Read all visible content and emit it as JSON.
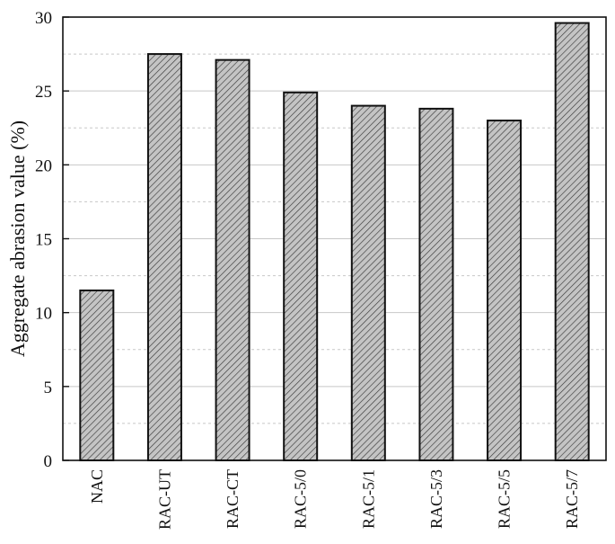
{
  "chart_data": {
    "type": "bar",
    "categories": [
      "NAC",
      "RAC-UT",
      "RAC-CT",
      "RAC-5/0",
      "RAC-5/1",
      "RAC-5/3",
      "RAC-5/5",
      "RAC-5/7"
    ],
    "values": [
      11.5,
      27.5,
      27.1,
      24.9,
      24.0,
      23.8,
      23.0,
      29.6
    ],
    "title": "",
    "xlabel": "",
    "ylabel": "Aggregate abrasion value (%)",
    "ylim": [
      0,
      30
    ],
    "yticks": [
      0,
      5,
      10,
      15,
      20,
      25,
      30
    ],
    "ytick_labels": [
      "0",
      "5",
      "10",
      "15",
      "20",
      "25",
      "30"
    ],
    "minor_grid": true,
    "bar_fill": "#c4c4c4",
    "bar_hatch": "#3a3a3a",
    "grid_color": "#c8c8c8",
    "axis_color": "#111111"
  }
}
